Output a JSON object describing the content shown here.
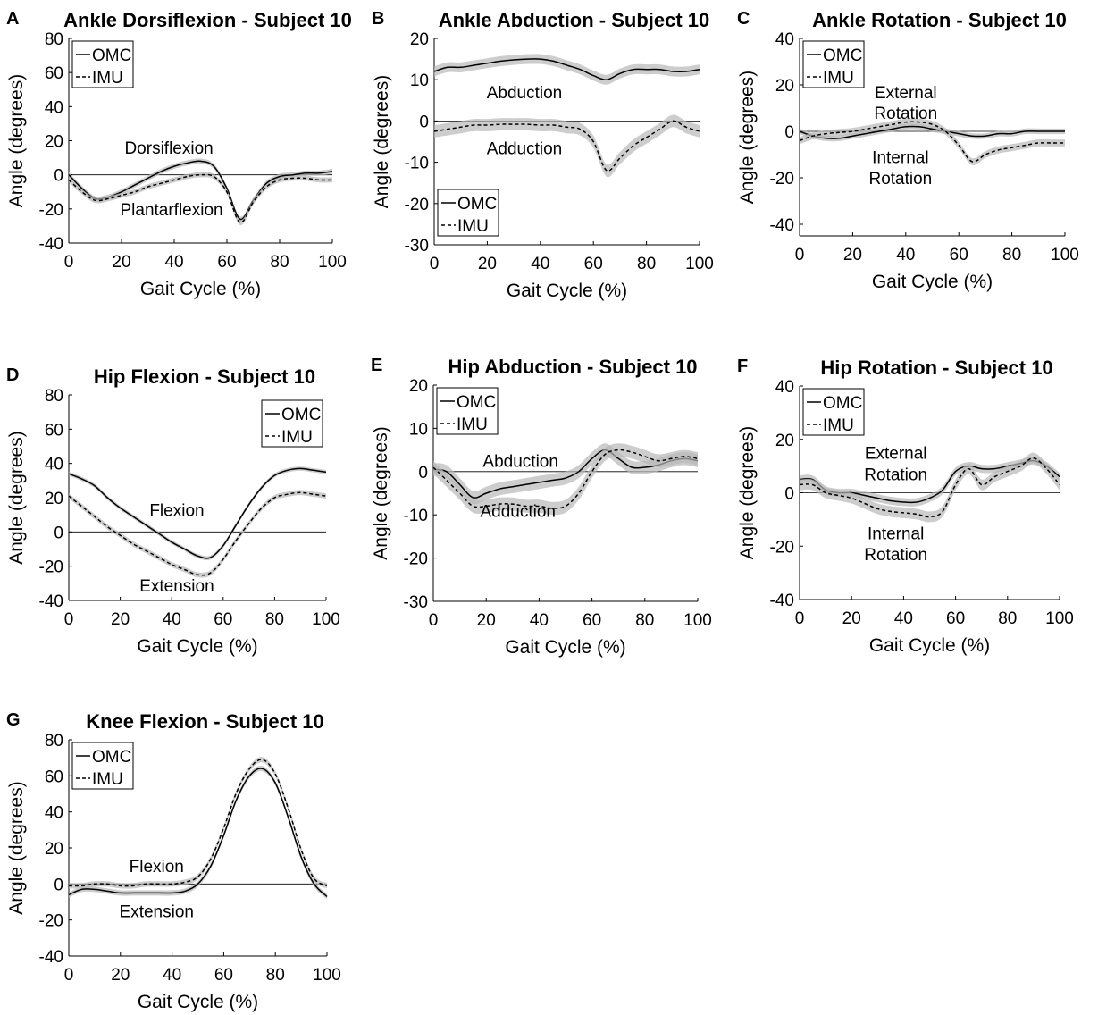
{
  "chart_data": [
    {
      "panel_label": "A",
      "type": "line",
      "title": "Ankle Dorsiflexion - Subject 10",
      "xlabel": "Gait Cycle (%)",
      "ylabel": "Angle (degrees)",
      "xlim": [
        0,
        100
      ],
      "ylim": [
        -40,
        80
      ],
      "xticks": [
        0,
        20,
        40,
        60,
        80,
        100
      ],
      "yticks": [
        -40,
        -20,
        0,
        20,
        40,
        60,
        80
      ],
      "zero_line": true,
      "legend": {
        "position": "top-left",
        "entries": [
          "OMC",
          "IMU"
        ]
      },
      "annotations": [
        {
          "text": "Dorsiflexion",
          "x": 38,
          "y": 16
        },
        {
          "text": "Plantarflexion",
          "x": 39,
          "y": -20
        }
      ],
      "x": [
        0,
        5,
        10,
        15,
        20,
        25,
        30,
        35,
        40,
        45,
        50,
        55,
        60,
        65,
        70,
        75,
        80,
        85,
        90,
        95,
        100
      ],
      "series": [
        {
          "name": "OMC",
          "style": "solid",
          "band": 1.5,
          "values": [
            0,
            -8,
            -14,
            -13,
            -10,
            -6,
            -2,
            2,
            5,
            7,
            8,
            5,
            -8,
            -26,
            -15,
            -5,
            -1,
            0,
            1,
            1,
            2
          ]
        },
        {
          "name": "IMU",
          "style": "dashed",
          "band": 1.5,
          "values": [
            -3,
            -10,
            -15,
            -14,
            -12,
            -10,
            -7,
            -5,
            -3,
            -1,
            0,
            -1,
            -10,
            -28,
            -16,
            -7,
            -3,
            -2,
            -2,
            -3,
            -3
          ]
        }
      ]
    },
    {
      "panel_label": "B",
      "type": "line",
      "title": "Ankle Abduction - Subject 10",
      "xlabel": "Gait Cycle (%)",
      "ylabel": "Angle (degrees)",
      "xlim": [
        0,
        100
      ],
      "ylim": [
        -30,
        20
      ],
      "xticks": [
        0,
        20,
        40,
        60,
        80,
        100
      ],
      "yticks": [
        -30,
        -20,
        -10,
        0,
        10,
        20
      ],
      "zero_line": true,
      "legend": {
        "position": "bottom-left",
        "entries": [
          "OMC",
          "IMU"
        ]
      },
      "annotations": [
        {
          "text": "Abduction",
          "x": 34,
          "y": 7
        },
        {
          "text": "Adduction",
          "x": 34,
          "y": -6.5
        }
      ],
      "x": [
        0,
        5,
        10,
        15,
        20,
        25,
        30,
        35,
        40,
        45,
        50,
        55,
        60,
        65,
        70,
        75,
        80,
        85,
        90,
        95,
        100
      ],
      "series": [
        {
          "name": "OMC",
          "style": "solid",
          "band": 1.2,
          "values": [
            12,
            13,
            13,
            13.5,
            14,
            14.5,
            14.8,
            15,
            15,
            14.5,
            13.5,
            12.5,
            11,
            10,
            11.5,
            12.5,
            12.5,
            12.5,
            12,
            12,
            12.5
          ]
        },
        {
          "name": "IMU",
          "style": "dashed",
          "band": 1.5,
          "values": [
            -2.5,
            -2,
            -1.5,
            -1,
            -1,
            -0.8,
            -0.8,
            -0.8,
            -1,
            -1,
            -1.5,
            -2,
            -5,
            -12,
            -9,
            -6,
            -4,
            -2,
            0,
            -1.5,
            -2.5
          ]
        }
      ]
    },
    {
      "panel_label": "C",
      "type": "line",
      "title": "Ankle Rotation - Subject 10",
      "xlabel": "Gait Cycle (%)",
      "ylabel": "Angle (degrees)",
      "xlim": [
        0,
        100
      ],
      "ylim": [
        -45,
        40
      ],
      "xticks": [
        0,
        20,
        40,
        60,
        80,
        100
      ],
      "yticks": [
        -40,
        -20,
        0,
        20,
        40
      ],
      "zero_line": true,
      "legend": {
        "position": "top-left",
        "entries": [
          "OMC",
          "IMU"
        ]
      },
      "annotations": [
        {
          "text": "External",
          "x": 40,
          "y": 17
        },
        {
          "text": "Rotation",
          "x": 40,
          "y": 8
        },
        {
          "text": "Internal",
          "x": 38,
          "y": -11
        },
        {
          "text": "Rotation",
          "x": 38,
          "y": -20
        }
      ],
      "x": [
        0,
        5,
        10,
        15,
        20,
        25,
        30,
        35,
        40,
        45,
        50,
        55,
        60,
        65,
        70,
        75,
        80,
        85,
        90,
        95,
        100
      ],
      "series": [
        {
          "name": "OMC",
          "style": "solid",
          "band": 1.2,
          "values": [
            0,
            -2,
            -3,
            -3,
            -2,
            -1,
            0,
            1,
            2,
            2,
            1,
            0,
            -1,
            -2,
            -2,
            -1,
            -1,
            0,
            0,
            0,
            0
          ]
        },
        {
          "name": "IMU",
          "style": "dashed",
          "band": 1.5,
          "values": [
            -4,
            -2,
            -1,
            -0.5,
            0,
            1,
            2,
            3,
            4,
            4,
            3,
            0,
            -6,
            -13,
            -10,
            -8,
            -7,
            -6,
            -5,
            -5,
            -5
          ]
        }
      ]
    },
    {
      "panel_label": "D",
      "type": "line",
      "title": "Hip Flexion - Subject 10",
      "xlabel": "Gait Cycle (%)",
      "ylabel": "Angle (degrees)",
      "xlim": [
        0,
        100
      ],
      "ylim": [
        -40,
        80
      ],
      "xticks": [
        0,
        20,
        40,
        60,
        80,
        100
      ],
      "yticks": [
        -40,
        -20,
        0,
        20,
        40,
        60,
        80
      ],
      "zero_line": true,
      "legend": {
        "position": "top-right",
        "entries": [
          "OMC",
          "IMU"
        ]
      },
      "annotations": [
        {
          "text": "Flexion",
          "x": 42,
          "y": 13
        },
        {
          "text": "Extension",
          "x": 42,
          "y": -31
        }
      ],
      "x": [
        0,
        5,
        10,
        15,
        20,
        25,
        30,
        35,
        40,
        45,
        50,
        55,
        60,
        65,
        70,
        75,
        80,
        85,
        90,
        95,
        100
      ],
      "series": [
        {
          "name": "OMC",
          "style": "solid",
          "band": 1.2,
          "values": [
            34,
            31,
            27,
            20,
            14,
            9,
            4,
            -1,
            -6,
            -10,
            -14,
            -15,
            -8,
            4,
            16,
            26,
            33,
            36,
            37,
            36,
            35
          ]
        },
        {
          "name": "IMU",
          "style": "dashed",
          "band": 1.5,
          "values": [
            21,
            15,
            9,
            3,
            -2,
            -7,
            -11,
            -15,
            -19,
            -22,
            -25,
            -24,
            -16,
            -5,
            5,
            14,
            20,
            22,
            23,
            22,
            21
          ]
        }
      ]
    },
    {
      "panel_label": "E",
      "type": "line",
      "title": "Hip Abduction - Subject 10",
      "xlabel": "Gait Cycle (%)",
      "ylabel": "Angle (degrees)",
      "xlim": [
        0,
        100
      ],
      "ylim": [
        -30,
        20
      ],
      "xticks": [
        0,
        20,
        40,
        60,
        80,
        100
      ],
      "yticks": [
        -30,
        -20,
        -10,
        0,
        10,
        20
      ],
      "zero_line": true,
      "legend": {
        "position": "top-left",
        "entries": [
          "OMC",
          "IMU"
        ]
      },
      "annotations": [
        {
          "text": "Abduction",
          "x": 33,
          "y": 2.5
        },
        {
          "text": "Adduction",
          "x": 32,
          "y": -9
        }
      ],
      "x": [
        0,
        5,
        10,
        15,
        20,
        25,
        30,
        35,
        40,
        45,
        50,
        55,
        60,
        65,
        70,
        75,
        80,
        85,
        90,
        95,
        100
      ],
      "series": [
        {
          "name": "OMC",
          "style": "solid",
          "band": 1.5,
          "values": [
            0.5,
            0,
            -3,
            -6,
            -5,
            -4,
            -3.5,
            -3,
            -2.5,
            -2,
            -1.5,
            0,
            3,
            5,
            3,
            1,
            1,
            1.5,
            2.5,
            3,
            2.5
          ]
        },
        {
          "name": "IMU",
          "style": "dashed",
          "band": 1.5,
          "values": [
            1,
            -2,
            -5,
            -8,
            -8,
            -7.5,
            -7.5,
            -8,
            -8,
            -8.5,
            -8,
            -5,
            0,
            4,
            5,
            4.5,
            3.5,
            2.5,
            3,
            3.5,
            3
          ]
        }
      ]
    },
    {
      "panel_label": "F",
      "type": "line",
      "title": "Hip Rotation - Subject 10",
      "xlabel": "Gait Cycle (%)",
      "ylabel": "Angle (degrees)",
      "xlim": [
        0,
        100
      ],
      "ylim": [
        -40,
        40
      ],
      "xticks": [
        0,
        20,
        40,
        60,
        80,
        100
      ],
      "yticks": [
        -40,
        -20,
        0,
        20,
        40
      ],
      "zero_line": true,
      "legend": {
        "position": "top-left",
        "entries": [
          "OMC",
          "IMU"
        ]
      },
      "annotations": [
        {
          "text": "External",
          "x": 37,
          "y": 15
        },
        {
          "text": "Rotation",
          "x": 37,
          "y": 7
        },
        {
          "text": "Internal",
          "x": 37,
          "y": -15
        },
        {
          "text": "Rotation",
          "x": 37,
          "y": -23
        }
      ],
      "x": [
        0,
        5,
        10,
        15,
        20,
        25,
        30,
        35,
        40,
        45,
        50,
        55,
        60,
        65,
        70,
        75,
        80,
        85,
        90,
        95,
        100
      ],
      "series": [
        {
          "name": "OMC",
          "style": "solid",
          "band": 1.5,
          "values": [
            5,
            5,
            1,
            0,
            0,
            -1,
            -2,
            -3,
            -3.5,
            -3.5,
            -2,
            1,
            8,
            10,
            9,
            9,
            10,
            11,
            12,
            10,
            6
          ]
        },
        {
          "name": "IMU",
          "style": "dashed",
          "band": 2,
          "values": [
            3,
            3,
            0,
            -1,
            -2,
            -4,
            -6,
            -7,
            -7.5,
            -8,
            -9,
            -7,
            3,
            9,
            3,
            6,
            8,
            10,
            13,
            9,
            3
          ]
        }
      ]
    },
    {
      "panel_label": "G",
      "type": "line",
      "title": "Knee Flexion - Subject 10",
      "xlabel": "Gait Cycle (%)",
      "ylabel": "Angle (degrees)",
      "xlim": [
        0,
        100
      ],
      "ylim": [
        -40,
        80
      ],
      "xticks": [
        0,
        20,
        40,
        60,
        80,
        100
      ],
      "yticks": [
        -40,
        -20,
        0,
        20,
        40,
        60,
        80
      ],
      "zero_line": true,
      "legend": {
        "position": "top-left",
        "entries": [
          "OMC",
          "IMU"
        ]
      },
      "annotations": [
        {
          "text": "Flexion",
          "x": 34,
          "y": 10
        },
        {
          "text": "Extension",
          "x": 34,
          "y": -15
        }
      ],
      "x": [
        0,
        5,
        10,
        15,
        20,
        25,
        30,
        35,
        40,
        45,
        50,
        55,
        60,
        65,
        70,
        75,
        80,
        85,
        90,
        95,
        100
      ],
      "series": [
        {
          "name": "OMC",
          "style": "solid",
          "band": 1.5,
          "values": [
            -6,
            -3,
            -3,
            -4,
            -5,
            -5,
            -5,
            -5,
            -5,
            -4,
            0,
            10,
            27,
            47,
            60,
            64,
            56,
            37,
            15,
            0,
            -7
          ]
        },
        {
          "name": "IMU",
          "style": "dashed",
          "band": 1.5,
          "values": [
            -1,
            -1,
            0,
            0,
            -1,
            -1,
            0,
            0,
            0,
            1,
            4,
            14,
            31,
            51,
            64,
            69,
            61,
            42,
            19,
            3,
            -1
          ]
        }
      ]
    }
  ]
}
